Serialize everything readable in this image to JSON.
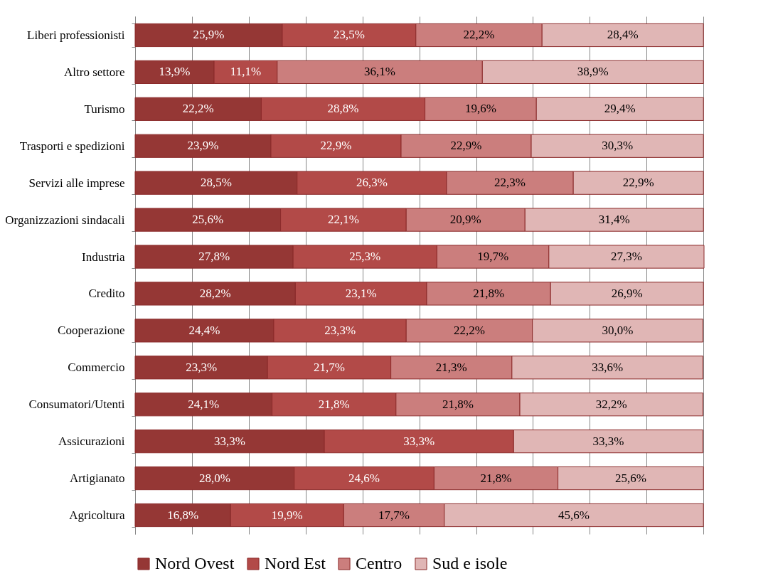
{
  "chart_data": {
    "type": "bar",
    "orientation": "horizontal",
    "stacked": true,
    "categories": [
      "Liberi professionisti",
      "Altro settore",
      "Turismo",
      "Trasporti e spedizioni",
      "Servizi alle imprese",
      "Organizzazioni sindacali",
      "Industria",
      "Credito",
      "Cooperazione",
      "Commercio",
      "Consumatori/Utenti",
      "Assicurazioni",
      "Artigianato",
      "Agricoltura"
    ],
    "series": [
      {
        "name": "Nord Ovest",
        "color": "#953735",
        "values": [
          25.9,
          13.9,
          22.2,
          23.9,
          28.5,
          25.6,
          27.8,
          28.2,
          24.4,
          23.3,
          24.1,
          33.3,
          28.0,
          16.8
        ],
        "value_labels": [
          "25,9%",
          "13,9%",
          "22,2%",
          "23,9%",
          "28,5%",
          "25,6%",
          "27,8%",
          "28,2%",
          "24,4%",
          "23,3%",
          "24,1%",
          "33,3%",
          "28,0%",
          "16,8%"
        ]
      },
      {
        "name": "Nord Est",
        "color": "#b24a48",
        "values": [
          23.5,
          11.1,
          28.8,
          22.9,
          26.3,
          22.1,
          25.3,
          23.1,
          23.3,
          21.7,
          21.8,
          33.3,
          24.6,
          19.9
        ],
        "value_labels": [
          "23,5%",
          "11,1%",
          "28,8%",
          "22,9%",
          "26,3%",
          "22,1%",
          "25,3%",
          "23,1%",
          "23,3%",
          "21,7%",
          "21,8%",
          "33,3%",
          "24,6%",
          "19,9%"
        ]
      },
      {
        "name": "Centro",
        "color": "#cb7e7d",
        "values": [
          22.2,
          36.1,
          19.6,
          22.9,
          22.3,
          20.9,
          19.7,
          21.8,
          22.2,
          21.3,
          21.8,
          null,
          21.8,
          17.7
        ],
        "value_labels": [
          "22,2%",
          "36,1%",
          "19,6%",
          "22,9%",
          "22,3%",
          "20,9%",
          "19,7%",
          "21,8%",
          "22,2%",
          "21,3%",
          "21,8%",
          null,
          "21,8%",
          "17,7%"
        ]
      },
      {
        "name": "Sud e isole",
        "color": "#e0b6b5",
        "values": [
          28.4,
          38.9,
          29.4,
          30.3,
          22.9,
          31.4,
          27.3,
          26.9,
          30.0,
          33.6,
          32.2,
          33.3,
          25.6,
          45.6
        ],
        "value_labels": [
          "28,4%",
          "38,9%",
          "29,4%",
          "30,3%",
          "22,9%",
          "31,4%",
          "27,3%",
          "26,9%",
          "30,0%",
          "33,6%",
          "32,2%",
          "33,3%",
          "25,6%",
          "45,6%"
        ]
      }
    ],
    "xlim": [
      0,
      100.1
    ],
    "xticks": [
      {
        "value": 0,
        "label": null
      },
      {
        "value": 10,
        "label": null
      },
      {
        "value": 20,
        "label": null
      },
      {
        "value": 30,
        "label": null
      },
      {
        "value": 40,
        "label": null
      },
      {
        "value": 50,
        "label": null
      },
      {
        "value": 60,
        "label": null
      },
      {
        "value": 70,
        "label": null
      },
      {
        "value": 80,
        "label": null
      },
      {
        "value": 90,
        "label": null
      },
      {
        "value": 100,
        "label": null
      }
    ],
    "grid": "x",
    "legend": "bottom"
  }
}
